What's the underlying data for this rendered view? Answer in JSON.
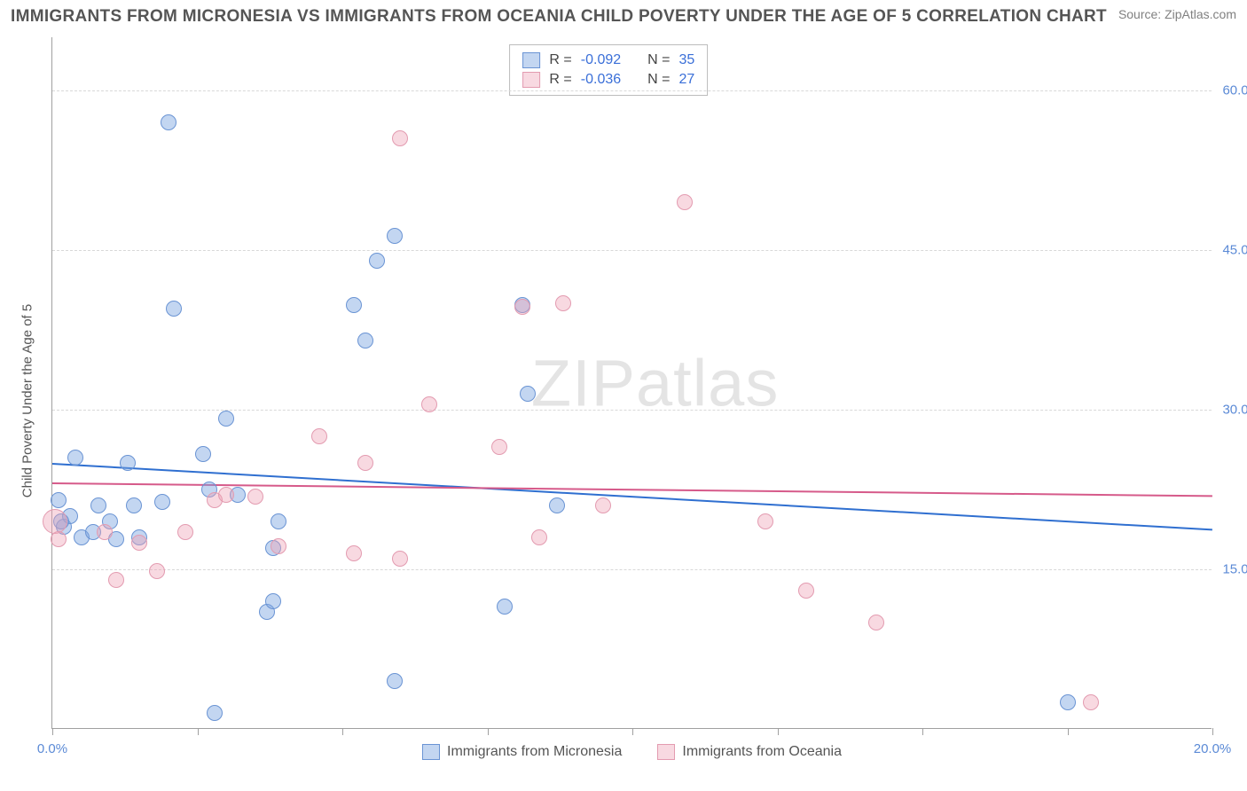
{
  "header": {
    "title": "IMMIGRANTS FROM MICRONESIA VS IMMIGRANTS FROM OCEANIA CHILD POVERTY UNDER THE AGE OF 5 CORRELATION CHART",
    "source_label": "Source: ",
    "source_value": "ZipAtlas.com"
  },
  "axes": {
    "ylabel": "Child Poverty Under the Age of 5",
    "xlim": [
      0,
      20
    ],
    "ylim": [
      0,
      65
    ],
    "xtick_positions": [
      0,
      2.5,
      5,
      7.5,
      10,
      12.5,
      15,
      17.5,
      20
    ],
    "xtick_labels": {
      "0": "0.0%",
      "20": "20.0%"
    },
    "ytick_positions": [
      15,
      30,
      45,
      60
    ],
    "ytick_labels": [
      "15.0%",
      "30.0%",
      "45.0%",
      "60.0%"
    ],
    "grid_color": "#d8d8d8",
    "axis_color": "#a0a0a0",
    "tick_label_color": "#5b8ad6"
  },
  "watermark": {
    "left": "ZIP",
    "right": "atlas"
  },
  "series": [
    {
      "name": "Immigrants from Micronesia",
      "fill": "rgba(122,163,224,0.45)",
      "stroke": "#6a94d4",
      "trend_color": "#2f6fd0",
      "R_label": "R = ",
      "R_value": "-0.092",
      "N_label": "N = ",
      "N_value": "35",
      "trend": {
        "x1": 0,
        "y1": 25.0,
        "x2": 20,
        "y2": 18.8
      },
      "points": [
        {
          "x": 0.1,
          "y": 21.5
        },
        {
          "x": 0.2,
          "y": 19.0
        },
        {
          "x": 0.3,
          "y": 20.0
        },
        {
          "x": 0.4,
          "y": 25.5
        },
        {
          "x": 0.5,
          "y": 18.0
        },
        {
          "x": 0.7,
          "y": 18.5
        },
        {
          "x": 0.8,
          "y": 21.0
        },
        {
          "x": 1.0,
          "y": 19.5
        },
        {
          "x": 1.1,
          "y": 17.8
        },
        {
          "x": 1.3,
          "y": 25.0
        },
        {
          "x": 1.4,
          "y": 21.0
        },
        {
          "x": 1.5,
          "y": 18.0
        },
        {
          "x": 1.9,
          "y": 21.3
        },
        {
          "x": 2.0,
          "y": 57.0
        },
        {
          "x": 2.1,
          "y": 39.5
        },
        {
          "x": 2.6,
          "y": 25.8
        },
        {
          "x": 2.7,
          "y": 22.5
        },
        {
          "x": 2.8,
          "y": 1.5
        },
        {
          "x": 3.0,
          "y": 29.2
        },
        {
          "x": 3.2,
          "y": 22.0
        },
        {
          "x": 3.7,
          "y": 11.0
        },
        {
          "x": 3.8,
          "y": 12.0
        },
        {
          "x": 3.8,
          "y": 17.0
        },
        {
          "x": 3.9,
          "y": 19.5
        },
        {
          "x": 5.2,
          "y": 39.8
        },
        {
          "x": 5.4,
          "y": 36.5
        },
        {
          "x": 5.6,
          "y": 44.0
        },
        {
          "x": 5.9,
          "y": 46.3
        },
        {
          "x": 5.9,
          "y": 4.5
        },
        {
          "x": 7.8,
          "y": 11.5
        },
        {
          "x": 8.1,
          "y": 39.8
        },
        {
          "x": 8.2,
          "y": 31.5
        },
        {
          "x": 8.7,
          "y": 21.0
        },
        {
          "x": 17.5,
          "y": 2.5
        },
        {
          "x": 0.15,
          "y": 19.5
        }
      ]
    },
    {
      "name": "Immigrants from Oceania",
      "fill": "rgba(238,160,180,0.40)",
      "stroke": "#e39bb0",
      "trend_color": "#d65a8a",
      "R_label": "R = ",
      "R_value": "-0.036",
      "N_label": "N = ",
      "N_value": "27",
      "trend": {
        "x1": 0,
        "y1": 23.2,
        "x2": 20,
        "y2": 22.0
      },
      "points": [
        {
          "x": 0.05,
          "y": 19.5,
          "r": 14
        },
        {
          "x": 0.1,
          "y": 17.8
        },
        {
          "x": 0.9,
          "y": 18.5
        },
        {
          "x": 1.1,
          "y": 14.0
        },
        {
          "x": 1.5,
          "y": 17.5
        },
        {
          "x": 1.8,
          "y": 14.8
        },
        {
          "x": 2.3,
          "y": 18.5
        },
        {
          "x": 2.8,
          "y": 21.5
        },
        {
          "x": 3.0,
          "y": 22.0
        },
        {
          "x": 3.5,
          "y": 21.8
        },
        {
          "x": 3.9,
          "y": 17.2
        },
        {
          "x": 4.6,
          "y": 27.5
        },
        {
          "x": 5.2,
          "y": 16.5
        },
        {
          "x": 5.4,
          "y": 25.0
        },
        {
          "x": 6.0,
          "y": 16.0
        },
        {
          "x": 6.0,
          "y": 55.5
        },
        {
          "x": 6.5,
          "y": 30.5
        },
        {
          "x": 7.7,
          "y": 26.5
        },
        {
          "x": 8.1,
          "y": 39.7
        },
        {
          "x": 8.4,
          "y": 18.0
        },
        {
          "x": 8.8,
          "y": 40.0
        },
        {
          "x": 9.5,
          "y": 21.0
        },
        {
          "x": 10.9,
          "y": 49.5
        },
        {
          "x": 12.3,
          "y": 19.5
        },
        {
          "x": 13.0,
          "y": 13.0
        },
        {
          "x": 14.2,
          "y": 10.0
        },
        {
          "x": 17.9,
          "y": 2.5
        }
      ]
    }
  ],
  "style": {
    "background_color": "#ffffff",
    "point_radius": 9,
    "point_border_width": 1.2,
    "title_color": "#555555",
    "label_color": "#555555",
    "font_family": "Arial"
  }
}
